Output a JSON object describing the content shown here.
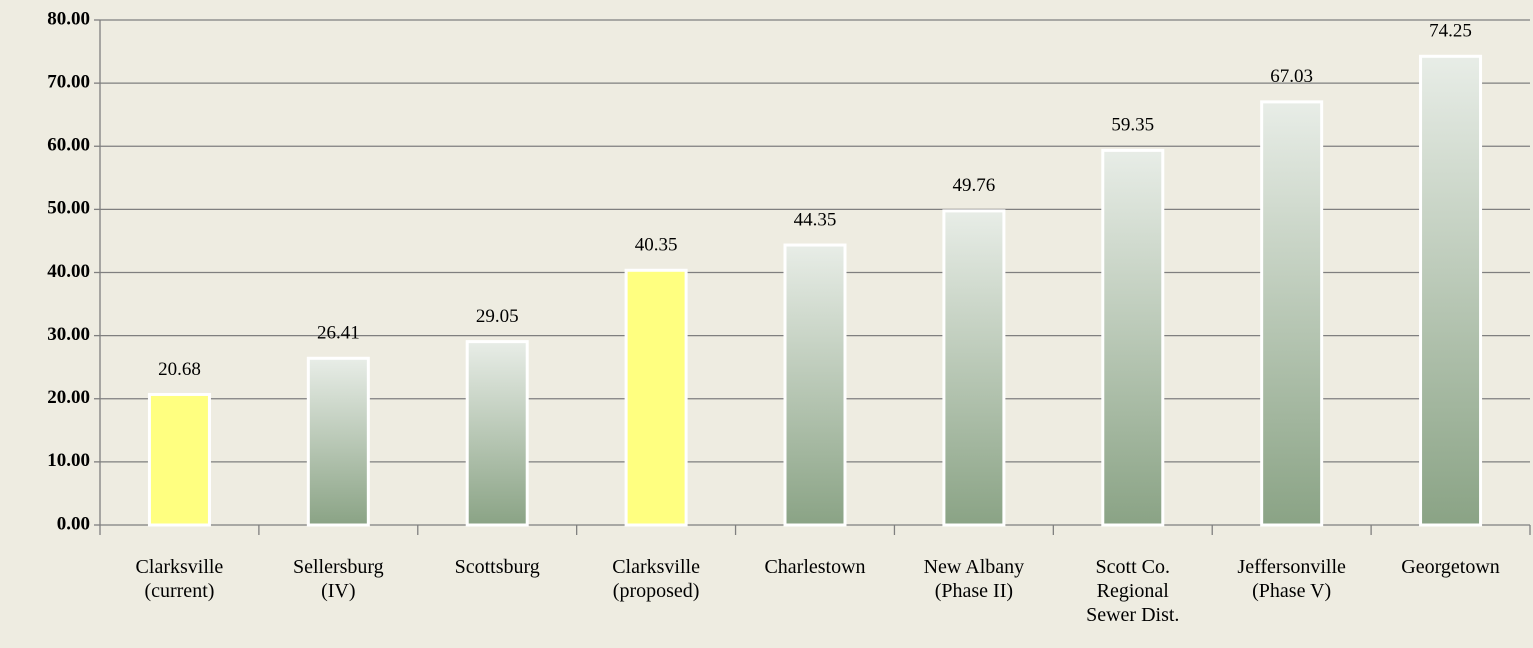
{
  "chart_data": {
    "type": "bar",
    "categories": [
      "Clarksville\n(current)",
      "Sellersburg\n(IV)",
      "Scottsburg",
      "Clarksville\n(proposed)",
      "Charlestown",
      "New Albany\n(Phase II)",
      "Scott Co.\nRegional\nSewer Dist.",
      "Jeffersonville\n(Phase V)",
      "Georgetown"
    ],
    "values": [
      20.68,
      26.41,
      29.05,
      40.35,
      44.35,
      49.76,
      59.35,
      67.03,
      74.25
    ],
    "colors": [
      "#ffff80",
      "#8aa385",
      "#8aa385",
      "#ffff80",
      "#8aa385",
      "#8aa385",
      "#8aa385",
      "#8aa385",
      "#8aa385"
    ],
    "gradient": [
      false,
      true,
      true,
      false,
      true,
      true,
      true,
      true,
      true
    ],
    "ylim": [
      0,
      80
    ],
    "yticks": [
      {
        "value": 0,
        "label": "0.00"
      },
      {
        "value": 10,
        "label": "10.00"
      },
      {
        "value": 20,
        "label": "20.00"
      },
      {
        "value": 30,
        "label": "30.00"
      },
      {
        "value": 40,
        "label": "40.00"
      },
      {
        "value": 50,
        "label": "50.00"
      },
      {
        "value": 60,
        "label": "60.00"
      },
      {
        "value": 70,
        "label": "70.00"
      },
      {
        "value": 80,
        "label": "80.00"
      }
    ],
    "grid": true
  }
}
